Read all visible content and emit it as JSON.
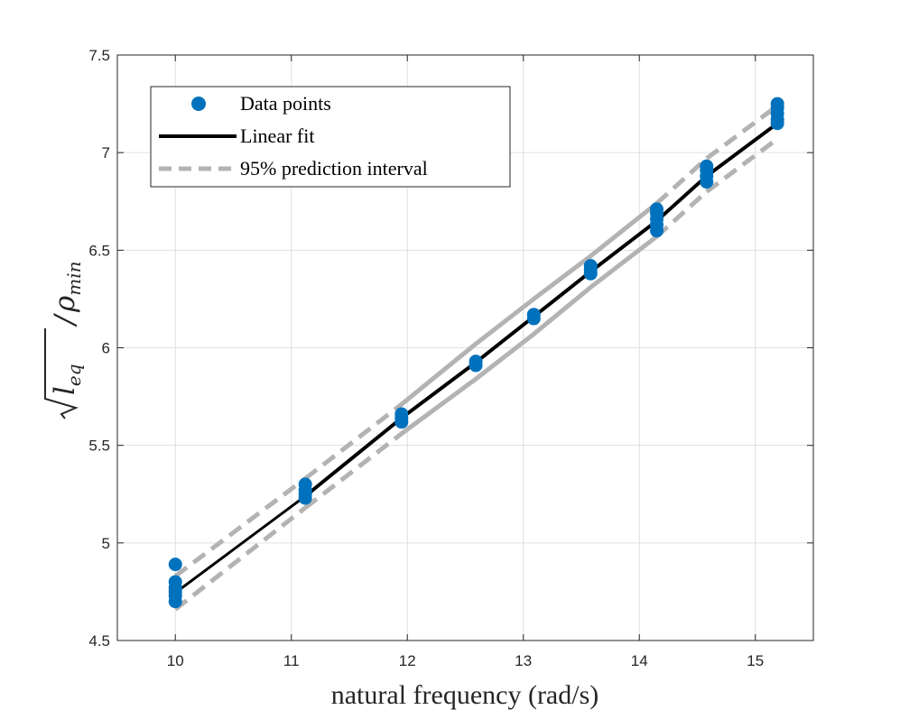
{
  "chart_data": {
    "type": "scatter",
    "title": "",
    "xlabel": "natural frequency (rad/s)",
    "ylabel": "√l_eq/ρ_min",
    "ylabel_parts": {
      "radicand": "l",
      "radicand_sub": "eq",
      "slash": "/",
      "rho": "ρ",
      "rho_sub": "min"
    },
    "xlim": [
      9.5,
      15.5
    ],
    "ylim": [
      4.5,
      7.5
    ],
    "xticks": [
      10,
      11,
      12,
      13,
      14,
      15
    ],
    "yticks": [
      4.5,
      5,
      5.5,
      6,
      6.5,
      7,
      7.5
    ],
    "xtick_labels": [
      "10",
      "11",
      "12",
      "13",
      "14",
      "15"
    ],
    "ytick_labels": [
      "4.5",
      "5",
      "5.5",
      "6",
      "6.5",
      "7",
      "7.5"
    ],
    "grid": true,
    "legend_position": "top-left",
    "colors": {
      "points": "#0072BD",
      "fit": "#000000",
      "interval": "#B3B3B3",
      "grid": "#E0E0E0",
      "axis": "#262626"
    },
    "series": [
      {
        "name": "Data points",
        "kind": "scatter",
        "points": [
          [
            10.0,
            4.7
          ],
          [
            10.0,
            4.73
          ],
          [
            10.0,
            4.75
          ],
          [
            10.0,
            4.77
          ],
          [
            10.0,
            4.8
          ],
          [
            10.0,
            4.89
          ],
          [
            11.12,
            5.23
          ],
          [
            11.12,
            5.25
          ],
          [
            11.12,
            5.27
          ],
          [
            11.12,
            5.3
          ],
          [
            11.95,
            5.62
          ],
          [
            11.95,
            5.64
          ],
          [
            11.95,
            5.66
          ],
          [
            12.59,
            5.91
          ],
          [
            12.59,
            5.93
          ],
          [
            13.09,
            6.15
          ],
          [
            13.09,
            6.17
          ],
          [
            13.58,
            6.38
          ],
          [
            13.58,
            6.4
          ],
          [
            13.58,
            6.42
          ],
          [
            14.15,
            6.6
          ],
          [
            14.15,
            6.63
          ],
          [
            14.15,
            6.66
          ],
          [
            14.15,
            6.69
          ],
          [
            14.15,
            6.71
          ],
          [
            14.58,
            6.85
          ],
          [
            14.58,
            6.88
          ],
          [
            14.58,
            6.91
          ],
          [
            14.58,
            6.93
          ],
          [
            15.19,
            7.15
          ],
          [
            15.19,
            7.17
          ],
          [
            15.19,
            7.2
          ],
          [
            15.19,
            7.23
          ],
          [
            15.19,
            7.25
          ]
        ]
      },
      {
        "name": "Linear fit",
        "kind": "line",
        "segments": [
          [
            [
              10.0,
              4.745
            ],
            [
              11.12,
              5.24
            ]
          ],
          [
            [
              11.12,
              5.24
            ],
            [
              11.95,
              5.64
            ],
            [
              12.59,
              5.925
            ],
            [
              13.09,
              6.16
            ],
            [
              13.58,
              6.39
            ],
            [
              14.15,
              6.65
            ],
            [
              14.58,
              6.88
            ],
            [
              15.19,
              7.15
            ]
          ]
        ]
      },
      {
        "name": "95% prediction interval",
        "kind": "interval",
        "upper": [
          [
            10.0,
            4.83
          ],
          [
            11.12,
            5.33
          ],
          [
            11.95,
            5.71
          ],
          [
            12.59,
            6.02
          ],
          [
            13.09,
            6.25
          ],
          [
            13.58,
            6.47
          ],
          [
            14.15,
            6.74
          ],
          [
            14.58,
            6.97
          ],
          [
            15.19,
            7.24
          ]
        ],
        "lower": [
          [
            10.0,
            4.66
          ],
          [
            11.12,
            5.18
          ],
          [
            11.95,
            5.56
          ],
          [
            12.59,
            5.84
          ],
          [
            13.09,
            6.07
          ],
          [
            13.58,
            6.31
          ],
          [
            14.15,
            6.57
          ],
          [
            14.58,
            6.8
          ],
          [
            15.19,
            7.07
          ]
        ]
      }
    ]
  }
}
